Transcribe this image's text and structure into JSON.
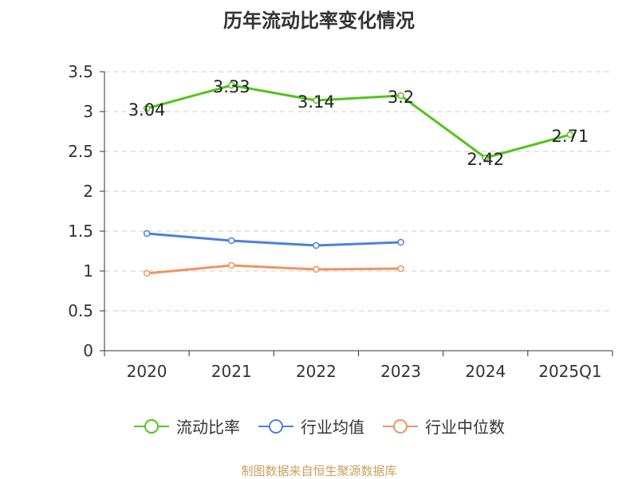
{
  "chart_data": {
    "type": "line",
    "title": "历年流动比率变化情况",
    "categories": [
      "2020",
      "2021",
      "2022",
      "2023",
      "2024",
      "2025Q1"
    ],
    "ylim": [
      0,
      3.5
    ],
    "yticks": [
      "0",
      "0.5",
      "1",
      "1.5",
      "2",
      "2.5",
      "3",
      "3.5"
    ],
    "grid": true,
    "legend_position": "bottom",
    "series": [
      {
        "name": "流动比率",
        "color": "#52c41a",
        "values": [
          3.04,
          3.33,
          3.14,
          3.2,
          2.42,
          2.71
        ],
        "labels": [
          "3.04",
          "3.33",
          "3.14",
          "3.2",
          "2.42",
          "2.71"
        ]
      },
      {
        "name": "行业均值",
        "color": "#4e7fe0",
        "values": [
          1.47,
          1.38,
          1.32,
          1.36,
          null,
          null
        ]
      },
      {
        "name": "行业中位数",
        "color": "#f4925e",
        "values": [
          0.97,
          1.07,
          1.02,
          1.03,
          null,
          null
        ]
      }
    ]
  },
  "footer": {
    "source": "制图数据来自恒生聚源数据库"
  }
}
